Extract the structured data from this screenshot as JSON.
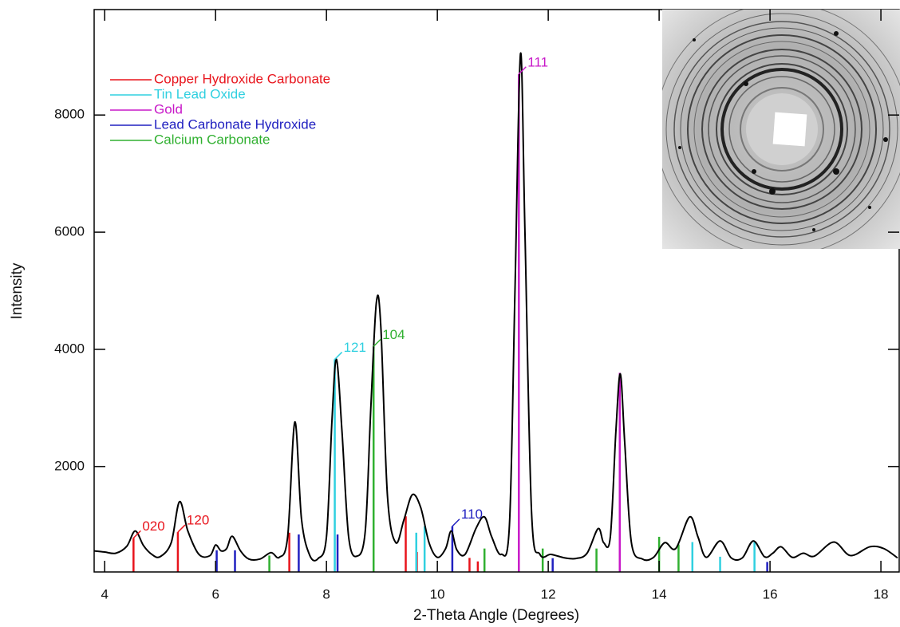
{
  "chart_data": {
    "type": "line",
    "x_label": "2-Theta Angle (Degrees)",
    "y_label": "Intensity",
    "xlim": [
      3.81,
      18.33
    ],
    "ylim": [
      200,
      9800
    ],
    "xticks": [
      4,
      6,
      8,
      10,
      12,
      14,
      16,
      18
    ],
    "yticks": [
      2000,
      4000,
      6000,
      8000
    ],
    "legend": "upper left",
    "series": [
      {
        "type": "line",
        "color": "#000000",
        "x": [
          3.81,
          4.0,
          4.2,
          4.4,
          4.55,
          4.7,
          4.85,
          5.0,
          5.2,
          5.35,
          5.5,
          5.7,
          5.9,
          6.0,
          6.1,
          6.2,
          6.3,
          6.45,
          6.6,
          6.8,
          7.0,
          7.15,
          7.3,
          7.43,
          7.55,
          7.7,
          7.85,
          8.0,
          8.1,
          8.18,
          8.28,
          8.4,
          8.55,
          8.7,
          8.8,
          8.9,
          8.98,
          9.1,
          9.25,
          9.4,
          9.55,
          9.7,
          9.85,
          10.0,
          10.15,
          10.25,
          10.35,
          10.5,
          10.7,
          10.85,
          10.98,
          11.15,
          11.3,
          11.4,
          11.5,
          11.58,
          11.7,
          11.85,
          12.05,
          12.3,
          12.5,
          12.7,
          12.9,
          13.0,
          13.12,
          13.22,
          13.3,
          13.38,
          13.5,
          13.7,
          13.9,
          14.1,
          14.3,
          14.55,
          14.7,
          14.85,
          15.1,
          15.3,
          15.5,
          15.7,
          15.9,
          16.05,
          16.2,
          16.4,
          16.6,
          16.8,
          17.15,
          17.45,
          17.8,
          18.05,
          18.3
        ],
        "values": [
          560,
          540,
          520,
          640,
          900,
          650,
          500,
          460,
          700,
          1400,
          900,
          500,
          480,
          660,
          560,
          600,
          810,
          560,
          420,
          420,
          530,
          450,
          800,
          2760,
          1100,
          480,
          430,
          800,
          2800,
          3830,
          2600,
          800,
          470,
          900,
          3000,
          4800,
          4400,
          1500,
          700,
          1100,
          1520,
          1300,
          700,
          450,
          600,
          900,
          580,
          500,
          950,
          1140,
          800,
          500,
          1000,
          5000,
          9050,
          6000,
          1200,
          500,
          500,
          440,
          430,
          520,
          940,
          700,
          800,
          2600,
          3580,
          2400,
          700,
          420,
          450,
          700,
          600,
          1140,
          800,
          450,
          730,
          440,
          440,
          730,
          460,
          520,
          630,
          450,
          520,
          470,
          710,
          480,
          630,
          600,
          440
        ]
      },
      {
        "type": "stem",
        "name": "Copper Hydroxide Carbonate",
        "color": "#e8141c",
        "x": [
          4.52,
          5.32,
          7.33,
          9.43,
          9.63,
          10.58,
          10.73
        ],
        "values": [
          780,
          880,
          870,
          1150,
          540,
          440,
          380
        ]
      },
      {
        "type": "stem",
        "name": "Tin Lead Oxide",
        "color": "#30d0e0",
        "x": [
          8.15,
          9.62,
          9.77,
          14.6,
          15.1,
          15.72
        ],
        "values": [
          3830,
          870,
          980,
          710,
          460,
          710
        ]
      },
      {
        "type": "stem",
        "name": "Gold",
        "color": "#c818c8",
        "x": [
          11.47,
          13.29
        ],
        "values": [
          8700,
          3600
        ]
      },
      {
        "type": "stem",
        "name": "Lead Carbonate Hydroxide",
        "color": "#2020c0",
        "x": [
          6.02,
          6.35,
          7.5,
          8.2,
          10.27,
          12.08,
          15.95
        ],
        "values": [
          570,
          570,
          840,
          840,
          980,
          435,
          370
        ]
      },
      {
        "type": "stem",
        "name": "Calcium Carbonate",
        "color": "#30b030",
        "x": [
          6.97,
          8.85,
          10.85,
          11.9,
          12.87,
          14.0,
          14.35
        ],
        "values": [
          480,
          4050,
          600,
          600,
          600,
          800,
          670
        ]
      }
    ],
    "annotations": [
      {
        "text": "020",
        "x": 4.52,
        "y": 780,
        "color": "#e8141c"
      },
      {
        "text": "120",
        "x": 5.32,
        "y": 880,
        "color": "#e8141c"
      },
      {
        "text": "121",
        "x": 8.15,
        "y": 3830,
        "color": "#30d0e0"
      },
      {
        "text": "104",
        "x": 8.85,
        "y": 4050,
        "color": "#30b030"
      },
      {
        "text": "110",
        "x": 10.27,
        "y": 980,
        "color": "#2020c0"
      },
      {
        "text": "111",
        "x": 11.47,
        "y": 8700,
        "color": "#c818c8"
      }
    ]
  }
}
